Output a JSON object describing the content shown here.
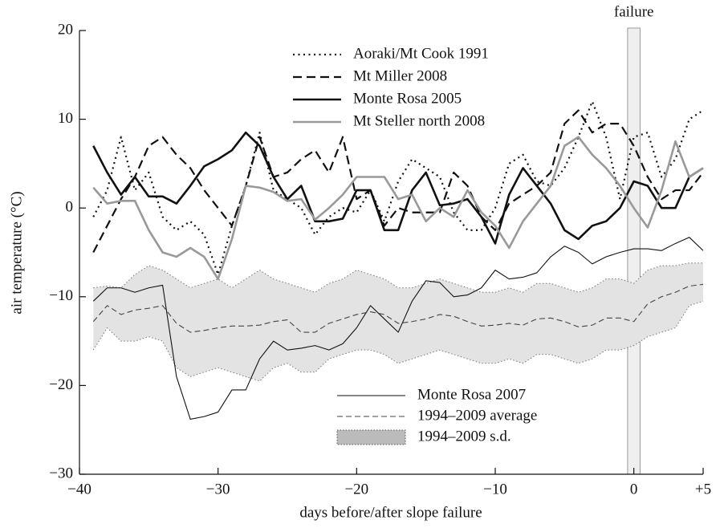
{
  "chart_data": {
    "type": "line",
    "xlabel": "days before/after slope failure",
    "ylabel": "air temperature (°C)",
    "xlim": [
      -40,
      5
    ],
    "ylim": [
      -30,
      20
    ],
    "xticks": [
      {
        "value": -40,
        "label": "−40"
      },
      {
        "value": -30,
        "label": "−30"
      },
      {
        "value": -20,
        "label": "−20"
      },
      {
        "value": -10,
        "label": "−10"
      },
      0,
      {
        "value": 5,
        "label": "+5"
      }
    ],
    "yticks": [
      {
        "value": -30,
        "label": "−30"
      },
      {
        "value": -20,
        "label": "−20"
      },
      {
        "value": -10,
        "label": "−10"
      },
      0,
      10,
      20
    ],
    "annotations": [
      {
        "text": "failure",
        "x": 0
      }
    ],
    "x": [
      -39,
      -38,
      -37,
      -36,
      -35,
      -34,
      -33,
      -32,
      -31,
      -30,
      -29,
      -28,
      -27,
      -26,
      -25,
      -24,
      -23,
      -22,
      -21,
      -20,
      -19,
      -18,
      -17,
      -16,
      -15,
      -14,
      -13,
      -12,
      -11,
      -10,
      -9,
      -8,
      -7,
      -6,
      -5,
      -4,
      -3,
      -2,
      -1,
      0,
      1,
      2,
      3,
      4,
      5
    ],
    "band": {
      "name": "1994–2009 s.d.",
      "color": "#e3e3e3",
      "upper": [
        -9,
        -8.8,
        -9,
        -7.5,
        -6.5,
        -7,
        -8,
        -9,
        -8.5,
        -8,
        -9,
        -8,
        -7,
        -8,
        -8.5,
        -9,
        -9.5,
        -8.5,
        -8,
        -7,
        -7.5,
        -8,
        -9,
        -9,
        -8.5,
        -8,
        -8.5,
        -9,
        -9.5,
        -9.5,
        -9,
        -9.5,
        -8.5,
        -8.5,
        -9,
        -9.5,
        -9,
        -8,
        -8,
        -8.5,
        -7,
        -6.5,
        -6.5,
        -6.2,
        -6.2
      ],
      "lower": [
        -16,
        -13.5,
        -15,
        -15,
        -14.5,
        -15,
        -18,
        -19,
        -18.5,
        -18,
        -18.5,
        -19,
        -19.5,
        -18,
        -17.5,
        -18.5,
        -18.5,
        -17,
        -16.5,
        -16,
        -16,
        -16.5,
        -17.5,
        -17,
        -16.5,
        -16,
        -16.5,
        -17,
        -17.5,
        -17.5,
        -17,
        -17.5,
        -16.5,
        -16.5,
        -17,
        -17.5,
        -17,
        -16,
        -16,
        -15.5,
        -14.5,
        -14,
        -13.5,
        -11,
        -10.5
      ]
    },
    "series": [
      {
        "name": "Aoraki/Mt Cook 1991",
        "color": "#111",
        "style": "dotted",
        "legend": "top",
        "values": [
          -1,
          2,
          8,
          2,
          4,
          -1,
          -2.5,
          -1.5,
          -3,
          -7.5,
          -2,
          2.5,
          8.5,
          2,
          1,
          0,
          -3,
          -1,
          0,
          -0.5,
          2,
          -1.5,
          3,
          5.5,
          4.5,
          3.5,
          -0.5,
          -2.5,
          -2.5,
          0,
          5,
          6,
          3,
          2.5,
          4.5,
          8,
          12,
          8,
          1,
          8,
          8.5,
          3.5,
          5.5,
          10,
          11
        ]
      },
      {
        "name": "Mt Miller 2008",
        "color": "#111",
        "style": "dashed",
        "legend": "top",
        "values": [
          -5,
          -2,
          1,
          3.5,
          7,
          8,
          6,
          4.5,
          2,
          0,
          -2,
          2.5,
          8,
          3.5,
          4,
          5.5,
          6.5,
          4,
          8,
          1,
          2,
          -2,
          0,
          -0.5,
          -0.5,
          -0.5,
          4,
          2.5,
          -1,
          -2.5,
          0.5,
          1.5,
          2.5,
          4,
          9.5,
          11,
          8.5,
          9.5,
          9.5,
          7,
          3.5,
          1,
          2,
          2,
          4
        ]
      },
      {
        "name": "Monte Rosa 2005",
        "color": "#111",
        "style": "thick",
        "legend": "top",
        "values": [
          7,
          4,
          1.5,
          3.5,
          1.3,
          1.3,
          0.5,
          2.5,
          4.7,
          5.5,
          6.5,
          8.5,
          7,
          3.5,
          1,
          2.5,
          -1.5,
          -1.5,
          -1.2,
          2,
          2,
          -2.5,
          -2.5,
          2,
          4,
          0.3,
          0.5,
          1,
          -1,
          -4,
          1.5,
          4.5,
          2.5,
          0.5,
          -2.5,
          -3.5,
          -2,
          -1.5,
          0,
          3,
          2.5,
          0,
          0,
          3.5,
          4.5
        ]
      },
      {
        "name": "Mt Steller north 2008",
        "color": "#999",
        "style": "thick",
        "legend": "top",
        "values": [
          2.3,
          0.5,
          0.8,
          0.8,
          -2.5,
          -5,
          -5.5,
          -4.5,
          -5.5,
          -8,
          -3.5,
          2.5,
          2.3,
          1.8,
          0.8,
          1,
          -1.3,
          0,
          1.5,
          3.5,
          3.5,
          3.5,
          1,
          1.5,
          -1.5,
          0,
          -1,
          2,
          -0.5,
          -2,
          -4.5,
          -1.5,
          0.5,
          2.5,
          7,
          8,
          6,
          4.5,
          2.5,
          0,
          -2.2,
          2,
          7.5,
          3.5,
          4.5
        ]
      },
      {
        "name": "Monte Rosa 2007",
        "color": "#111",
        "style": "thin",
        "legend": "bottom",
        "values": [
          -10.5,
          -9,
          -9,
          -9.5,
          -9,
          -8.7,
          -19,
          -23.8,
          -23.5,
          -23,
          -20.5,
          -20.5,
          -17,
          -15,
          -16,
          -15.8,
          -15.5,
          -16,
          -15.3,
          -13.5,
          -11,
          -12.5,
          -14,
          -10.5,
          -8.2,
          -8.4,
          -10,
          -9.8,
          -9,
          -7,
          -8,
          -7.8,
          -7.3,
          -5.5,
          -4.3,
          -5,
          -6.3,
          -5.5,
          -5,
          -4.6,
          -4.6,
          -4.8,
          -4,
          -3.3,
          -4.8
        ]
      },
      {
        "name": "1994–2009 average",
        "color": "#444",
        "style": "thin-dashed",
        "legend": "bottom",
        "values": [
          -12.8,
          -11,
          -12,
          -11.5,
          -11.3,
          -11,
          -13,
          -14,
          -13.8,
          -13.5,
          -13.3,
          -13.3,
          -13.2,
          -12.8,
          -12.6,
          -14,
          -14,
          -13,
          -12.5,
          -12,
          -11.7,
          -12,
          -13,
          -12.8,
          -12.5,
          -12,
          -12.2,
          -12.8,
          -13.3,
          -13.2,
          -13,
          -13.2,
          -12.5,
          -12.4,
          -12.8,
          -13.4,
          -13.2,
          -12.4,
          -12.4,
          -12.8,
          -10.8,
          -10,
          -9.5,
          -8.8,
          -8.6
        ]
      }
    ]
  }
}
